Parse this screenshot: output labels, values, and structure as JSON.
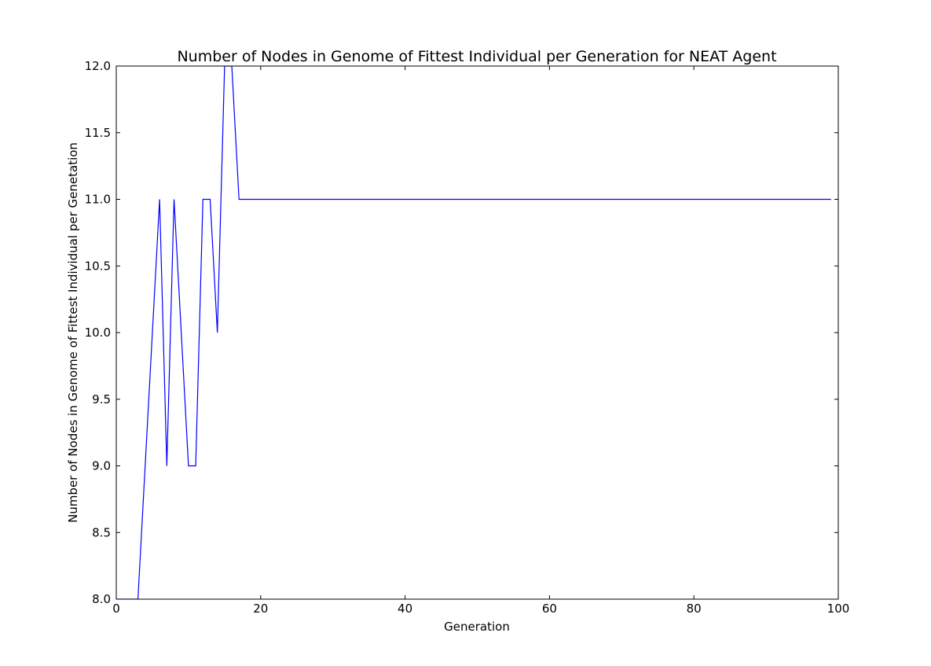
{
  "chart_data": {
    "type": "line",
    "title": "Number of Nodes in Genome of Fittest Individual per Generation for NEAT Agent",
    "xlabel": "Generation",
    "ylabel": "Number of Nodes in Genome of Fittest Individual per Genetation",
    "xlim": [
      0,
      100
    ],
    "ylim": [
      8.0,
      12.0
    ],
    "x_ticks": [
      0,
      20,
      40,
      60,
      80,
      100
    ],
    "x_tick_labels": [
      "0",
      "20",
      "40",
      "60",
      "80",
      "100"
    ],
    "y_ticks": [
      8.0,
      8.5,
      9.0,
      9.5,
      10.0,
      10.5,
      11.0,
      11.5,
      12.0
    ],
    "y_tick_labels": [
      "8.0",
      "8.5",
      "9.0",
      "9.5",
      "10.0",
      "10.5",
      "11.0",
      "11.5",
      "12.0"
    ],
    "grid": false,
    "legend": "none",
    "series": [
      {
        "color": "#0000ff",
        "x": [
          0,
          1,
          2,
          3,
          4,
          5,
          6,
          7,
          8,
          9,
          10,
          11,
          12,
          13,
          14,
          15,
          16,
          17,
          18,
          19,
          20,
          21,
          22,
          23,
          24,
          25,
          26,
          27,
          28,
          29,
          30,
          31,
          32,
          33,
          34,
          35,
          36,
          37,
          38,
          39,
          40,
          41,
          42,
          43,
          44,
          45,
          46,
          47,
          48,
          49,
          50,
          51,
          52,
          53,
          54,
          55,
          56,
          57,
          58,
          59,
          60,
          61,
          62,
          63,
          64,
          65,
          66,
          67,
          68,
          69,
          70,
          71,
          72,
          73,
          74,
          75,
          76,
          77,
          78,
          79,
          80,
          81,
          82,
          83,
          84,
          85,
          86,
          87,
          88,
          89,
          90,
          91,
          92,
          93,
          94,
          95,
          96,
          97,
          98,
          99
        ],
        "values": [
          8,
          8,
          8,
          8,
          9,
          10,
          11,
          9,
          11,
          10,
          9,
          9,
          11,
          11,
          10,
          12,
          12,
          11,
          11,
          11,
          11,
          11,
          11,
          11,
          11,
          11,
          11,
          11,
          11,
          11,
          11,
          11,
          11,
          11,
          11,
          11,
          11,
          11,
          11,
          11,
          11,
          11,
          11,
          11,
          11,
          11,
          11,
          11,
          11,
          11,
          11,
          11,
          11,
          11,
          11,
          11,
          11,
          11,
          11,
          11,
          11,
          11,
          11,
          11,
          11,
          11,
          11,
          11,
          11,
          11,
          11,
          11,
          11,
          11,
          11,
          11,
          11,
          11,
          11,
          11,
          11,
          11,
          11,
          11,
          11,
          11,
          11,
          11,
          11,
          11,
          11,
          11,
          11,
          11,
          11,
          11,
          11,
          11,
          11,
          11
        ]
      }
    ]
  }
}
